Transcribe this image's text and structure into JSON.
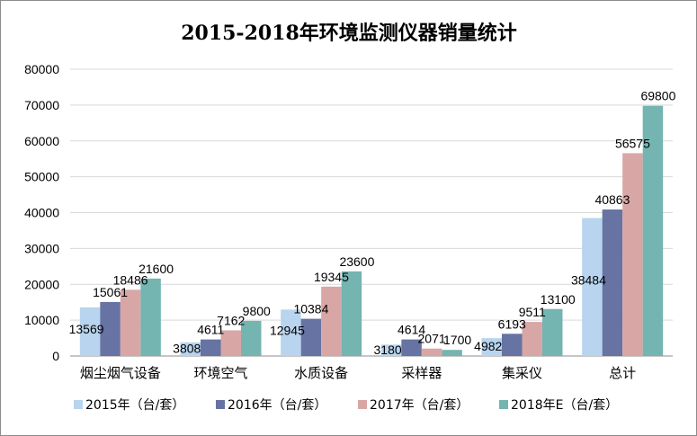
{
  "chart_data": {
    "type": "bar",
    "title": "2015-2018年环境监测仪器销量统计",
    "categories": [
      "烟尘烟气设备",
      "环境空气",
      "水质设备",
      "采样器",
      "集采仪",
      "总计"
    ],
    "series": [
      {
        "name": "2015年（台/套）",
        "color": "#b8d4ee",
        "values": [
          13569,
          3808,
          12945,
          3180,
          4982,
          38484
        ]
      },
      {
        "name": "2016年（台/套）",
        "color": "#6673a3",
        "values": [
          15061,
          4611,
          10384,
          4614,
          6193,
          40863
        ]
      },
      {
        "name": "2017年（台/套）",
        "color": "#d9a6a6",
        "values": [
          18486,
          7162,
          19345,
          2071,
          9511,
          56575
        ]
      },
      {
        "name": "2018年E（台/套）",
        "color": "#74b4b1",
        "values": [
          21600,
          9800,
          23600,
          1700,
          13100,
          69800
        ]
      }
    ],
    "yticks": [
      "0",
      "10000",
      "20000",
      "30000",
      "40000",
      "50000",
      "60000",
      "70000",
      "80000"
    ],
    "ylim": [
      0,
      80000
    ],
    "grid": true,
    "legend_position": "bottom"
  }
}
